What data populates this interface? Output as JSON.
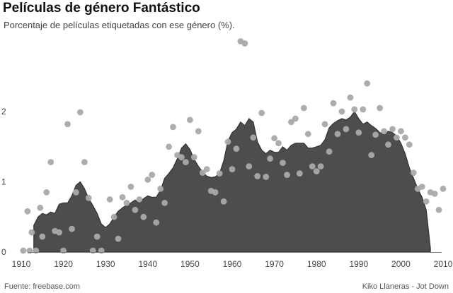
{
  "chart_data": {
    "type": "area",
    "title": "Películas de género Fantástico",
    "subtitle": "Porcentaje de películas etiquetadas con ese género (%).",
    "xlabel": "",
    "ylabel": "",
    "xlim": [
      1909,
      2010
    ],
    "ylim": [
      0,
      3
    ],
    "x_ticks": [
      1910,
      1920,
      1930,
      1940,
      1950,
      1960,
      1970,
      1980,
      1990,
      2000,
      2010
    ],
    "y_ticks": [
      0,
      1,
      2
    ],
    "grid": false,
    "series": [
      {
        "type": "area",
        "x": [
          1913,
          1914,
          1915,
          1916,
          1917,
          1918,
          1919,
          1920,
          1921,
          1922,
          1923,
          1924,
          1925,
          1926,
          1927,
          1928,
          1929,
          1930,
          1931,
          1932,
          1933,
          1934,
          1935,
          1936,
          1937,
          1938,
          1939,
          1940,
          1941,
          1942,
          1943,
          1944,
          1945,
          1946,
          1947,
          1948,
          1949,
          1950,
          1951,
          1952,
          1953,
          1954,
          1955,
          1956,
          1957,
          1958,
          1959,
          1960,
          1961,
          1962,
          1963,
          1964,
          1965,
          1966,
          1967,
          1968,
          1969,
          1970,
          1971,
          1972,
          1973,
          1974,
          1975,
          1976,
          1977,
          1978,
          1979,
          1980,
          1981,
          1982,
          1983,
          1984,
          1985,
          1986,
          1987,
          1988,
          1989,
          1990,
          1991,
          1992,
          1993,
          1994,
          1995,
          1996,
          1997,
          1998,
          1999,
          2000,
          2001,
          2002,
          2003,
          2004,
          2005,
          2006,
          2007
        ],
        "values": [
          0.38,
          0.5,
          0.55,
          0.53,
          0.57,
          0.55,
          0.68,
          0.7,
          0.7,
          0.8,
          0.95,
          1.0,
          0.9,
          0.76,
          0.66,
          0.55,
          0.4,
          0.35,
          0.4,
          0.5,
          0.58,
          0.63,
          0.67,
          0.7,
          0.74,
          0.7,
          0.76,
          0.8,
          0.78,
          0.78,
          0.88,
          1.05,
          1.12,
          1.2,
          1.33,
          1.48,
          1.54,
          1.46,
          1.32,
          1.22,
          1.14,
          1.08,
          1.06,
          1.07,
          1.12,
          1.3,
          1.58,
          1.7,
          1.75,
          1.85,
          1.8,
          1.9,
          1.85,
          1.57,
          1.45,
          1.4,
          1.45,
          1.42,
          1.42,
          1.5,
          1.45,
          1.52,
          1.55,
          1.55,
          1.55,
          1.48,
          1.48,
          1.5,
          1.52,
          1.6,
          1.77,
          1.83,
          1.87,
          1.9,
          1.88,
          1.92,
          2.0,
          1.9,
          1.82,
          1.85,
          1.8,
          1.76,
          1.7,
          1.68,
          1.72,
          1.7,
          1.65,
          1.55,
          1.4,
          1.2,
          1.05,
          0.9,
          0.78,
          0.6,
          0.05
        ]
      },
      {
        "type": "scatter",
        "x": [
          1910.5,
          1911.5,
          1912,
          1912.5,
          1913.5,
          1914.5,
          1915,
          1916,
          1917,
          1918,
          1919,
          1920,
          1921,
          1922,
          1923,
          1924,
          1925,
          1926,
          1927,
          1928,
          1929,
          1931,
          1932,
          1933,
          1934,
          1935,
          1936,
          1937,
          1938,
          1939,
          1940,
          1941,
          1942,
          1943,
          1944,
          1945,
          1946,
          1947,
          1948,
          1949,
          1950,
          1951,
          1952,
          1953,
          1954,
          1955,
          1956,
          1957,
          1958,
          1959,
          1960,
          1961,
          1962,
          1963,
          1964,
          1965,
          1966,
          1967,
          1968,
          1969,
          1970,
          1971,
          1972,
          1973,
          1974,
          1975,
          1976,
          1977,
          1978,
          1979,
          1980,
          1981,
          1982,
          1983,
          1984,
          1985,
          1986,
          1987,
          1988,
          1989,
          1990,
          1991,
          1992,
          1993,
          1994,
          1995,
          1996,
          1997,
          1998,
          1999,
          2000,
          2001,
          2002,
          2003,
          2004,
          2005,
          2006,
          2007,
          2008,
          2009,
          2010
        ],
        "values": [
          0.02,
          0.58,
          0.02,
          0.28,
          0.02,
          0.63,
          0.22,
          0.85,
          1.28,
          0.3,
          0.28,
          0.02,
          1.82,
          0.33,
          0.85,
          1.99,
          1.28,
          0.77,
          0.02,
          0.22,
          0.02,
          0.75,
          0.5,
          0.19,
          0.78,
          0.7,
          0.93,
          0.6,
          0.75,
          0.5,
          1.03,
          1.1,
          0.42,
          0.9,
          0.7,
          1.5,
          1.78,
          1.38,
          1.35,
          1.28,
          1.88,
          1.35,
          1.72,
          1.13,
          1.18,
          0.87,
          0.85,
          1.12,
          0.72,
          1.57,
          1.18,
          1.47,
          3.0,
          2.97,
          1.22,
          1.63,
          1.08,
          1.98,
          1.07,
          1.33,
          1.62,
          1.55,
          1.27,
          1.1,
          1.85,
          1.9,
          1.12,
          2.05,
          1.68,
          1.22,
          1.15,
          1.22,
          1.82,
          1.43,
          2.12,
          1.68,
          2.0,
          1.75,
          2.2,
          2.03,
          1.7,
          2.03,
          2.4,
          1.38,
          1.67,
          2.05,
          1.72,
          1.53,
          1.75,
          1.63,
          1.72,
          1.63,
          1.53,
          1.13,
          0.9,
          0.93,
          0.72,
          0.85,
          0.83,
          0.6,
          0.9
        ]
      }
    ]
  },
  "footer": {
    "source": "Fuente: freebase.com",
    "credit": "Kiko Llaneras - Jot Down"
  },
  "colors": {
    "area_fill": "#4d4d4d",
    "area_stroke": "#333333",
    "dot_fill": "#a9a9a9",
    "axis_line": "#777777"
  }
}
